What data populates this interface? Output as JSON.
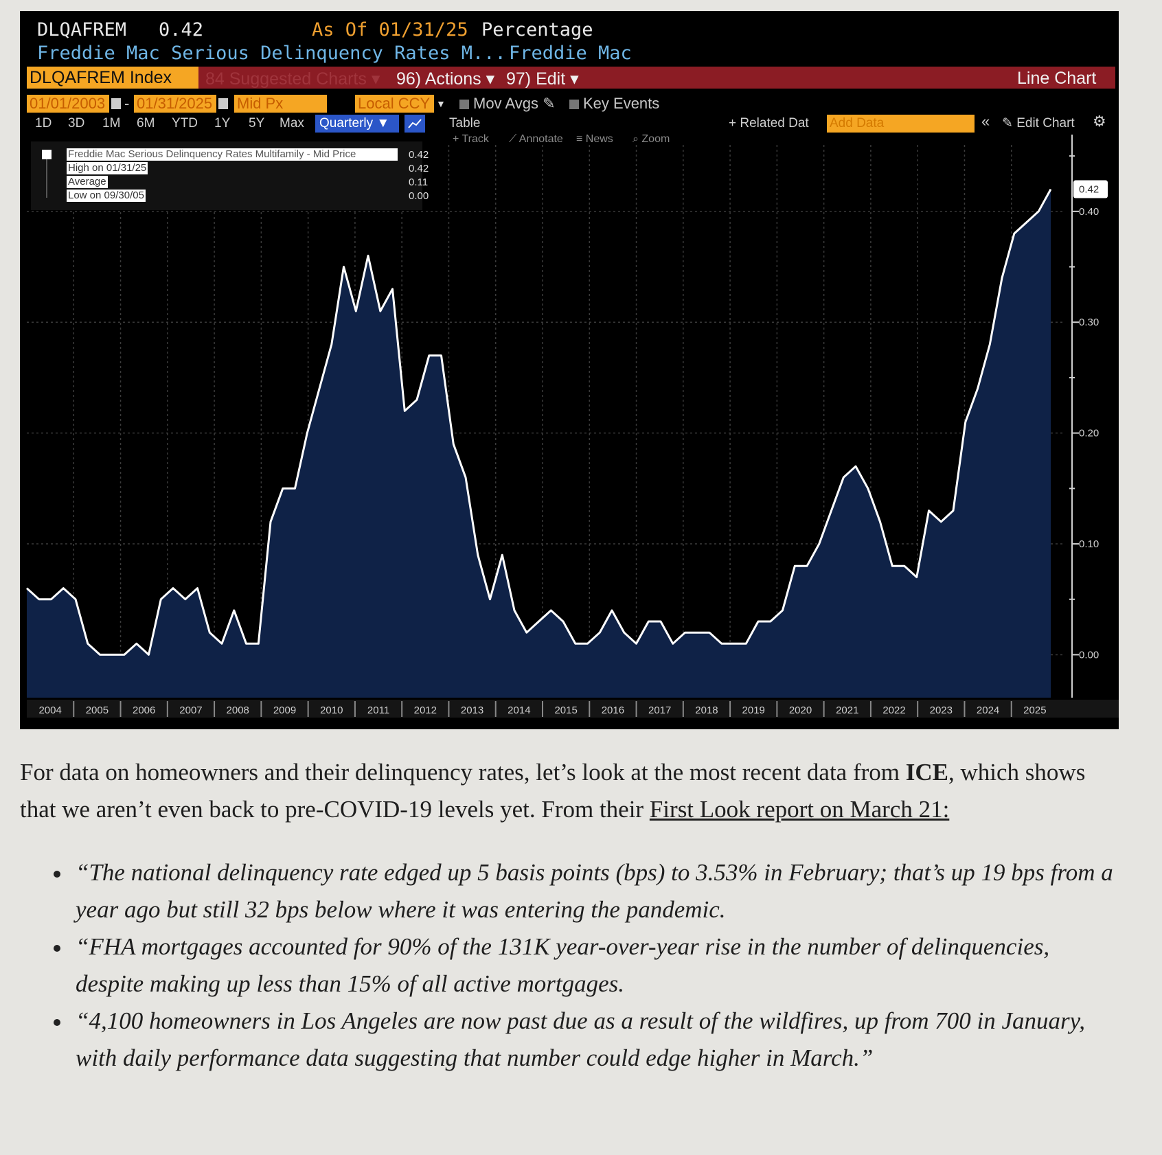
{
  "terminal": {
    "ticker": "DLQAFREM",
    "last_value": "0.42",
    "as_of": "As Of 01/31/25",
    "units": "Percentage",
    "long_name": "Freddie Mac Serious Delinquency Rates M...",
    "source": "Freddie Mac",
    "index_field": "DLQAFREM Index",
    "suggested": "84 Suggested Charts ▾",
    "actions": "96) Actions ▾",
    "edit": "97) Edit ▾",
    "chart_kind": "Line Chart",
    "start_date": "01/01/2003",
    "end_date": "01/31/2025",
    "price_field": "Mid Px",
    "currency": "Local CCY",
    "mov_avgs": "Mov Avgs",
    "key_events": "Key Events",
    "ranges": [
      "1D",
      "3D",
      "1M",
      "6M",
      "YTD",
      "1Y",
      "5Y",
      "Max"
    ],
    "frequency": "Quarterly ▼",
    "table": "Table",
    "related": "+ Related Dat",
    "add_data": "Add Data",
    "edit_chart": "Edit Chart",
    "tools": [
      "Track",
      "Annotate",
      "News",
      "Zoom"
    ],
    "legend": [
      {
        "label": "Freddie Mac Serious Delinquency Rates Multifamily - Mid Price",
        "value": "0.42"
      },
      {
        "label": "High on 01/31/25",
        "value": "0.42"
      },
      {
        "label": "Average",
        "value": "0.11"
      },
      {
        "label": "Low on 09/30/05",
        "value": "0.00"
      }
    ],
    "colors": {
      "fill": "#0f2247",
      "line": "#ffffff",
      "accent": "#f5a623",
      "bar": "#8b1c24"
    }
  },
  "chart_data": {
    "type": "area",
    "ylim": [
      -0.04,
      0.46
    ],
    "yticks": [
      0.0,
      0.1,
      0.2,
      0.3,
      0.4
    ],
    "ytick_labels": [
      "0.00",
      "0.10",
      "0.20",
      "0.30",
      "0.40"
    ],
    "last_label": "0.42",
    "year_labels": [
      "2004",
      "2005",
      "2006",
      "2007",
      "2008",
      "2009",
      "2010",
      "2011",
      "2012",
      "2013",
      "2014",
      "2015",
      "2016",
      "2017",
      "2018",
      "2019",
      "2020",
      "2021",
      "2022",
      "2023",
      "2024",
      "2025"
    ],
    "series": [
      {
        "values": [
          0.06,
          0.05,
          0.05,
          0.06,
          0.05,
          0.01,
          0.0,
          0.0,
          0.0,
          0.01,
          0.0,
          0.05,
          0.06,
          0.05,
          0.06,
          0.02,
          0.01,
          0.04,
          0.01,
          0.01,
          0.12,
          0.15,
          0.15,
          0.2,
          0.24,
          0.28,
          0.35,
          0.31,
          0.36,
          0.31,
          0.33,
          0.22,
          0.23,
          0.27,
          0.27,
          0.19,
          0.16,
          0.09,
          0.05,
          0.09,
          0.04,
          0.02,
          0.03,
          0.04,
          0.03,
          0.01,
          0.01,
          0.02,
          0.04,
          0.02,
          0.01,
          0.03,
          0.03,
          0.01,
          0.02,
          0.02,
          0.02,
          0.01,
          0.01,
          0.01,
          0.03,
          0.03,
          0.04,
          0.08,
          0.08,
          0.1,
          0.13,
          0.16,
          0.17,
          0.15,
          0.12,
          0.08,
          0.08,
          0.07,
          0.13,
          0.12,
          0.13,
          0.21,
          0.24,
          0.28,
          0.34,
          0.38,
          0.39,
          0.4,
          0.42
        ]
      }
    ]
  },
  "article": {
    "para_before": "For data on homeowners and their delinquency rates, let’s look at the most recent data from ",
    "para_bold": "ICE",
    "para_mid": ", which shows that we aren’t even back to pre-COVID-19 levels yet. From their ",
    "para_link": "First Look report on March 21:",
    "bullets": [
      "“The national delinquency rate edged up 5 basis points (bps) to 3.53% in February; that’s up 19 bps from a year ago but still 32 bps below where it was entering the pandemic.",
      "“FHA mortgages accounted for 90% of the 131K year-over-year rise in the number of delinquencies, despite making up less than 15% of all active mortgages.",
      "“4,100 homeowners in Los Angeles are now past due as a result of the wildfires, up from 700 in January, with daily performance data suggesting that number could edge higher in March.”"
    ]
  }
}
